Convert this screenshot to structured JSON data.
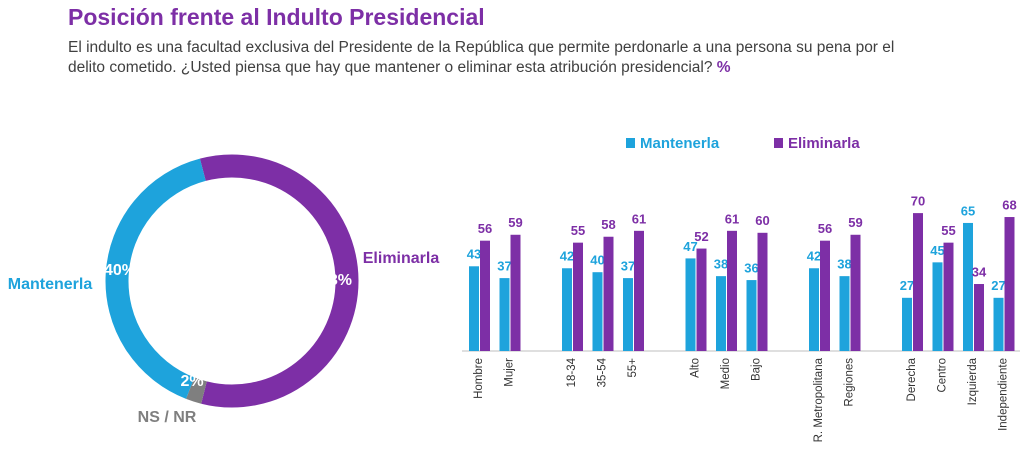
{
  "header": {
    "title": "Posición frente al Indulto Presidencial",
    "subtitle": "El indulto es una facultad exclusiva del Presidente de la República que permite perdonarle a una persona su pena por el delito cometido. ¿Usted piensa que hay que mantener o eliminar esta atribución presidencial?",
    "unit": "%"
  },
  "chart_data": [
    {
      "type": "donut",
      "categories": [
        "Mantenerla",
        "Eliminarla",
        "NS / NR"
      ],
      "values": [
        40,
        58,
        2
      ],
      "value_labels": [
        "40%",
        "58%",
        "2%"
      ],
      "colors": [
        "#1ea3dc",
        "#7d2fa6",
        "#7f7f7f"
      ]
    },
    {
      "type": "bar",
      "categories": [
        "Hombre",
        "Mujer",
        "18-34",
        "35-54",
        "55+",
        "Alto",
        "Medio",
        "Bajo",
        "R. Metropolitana",
        "Regiones",
        "Derecha",
        "Centro",
        "Izquierda",
        "Independiente"
      ],
      "series": [
        {
          "name": "Mantenerla",
          "color": "#1ea3dc",
          "values": [
            43,
            37,
            42,
            40,
            37,
            47,
            38,
            36,
            42,
            38,
            27,
            45,
            65,
            27
          ]
        },
        {
          "name": "Eliminarla",
          "color": "#7d2fa6",
          "values": [
            56,
            59,
            55,
            58,
            61,
            52,
            61,
            60,
            56,
            59,
            70,
            55,
            34,
            68
          ]
        }
      ]
    }
  ]
}
